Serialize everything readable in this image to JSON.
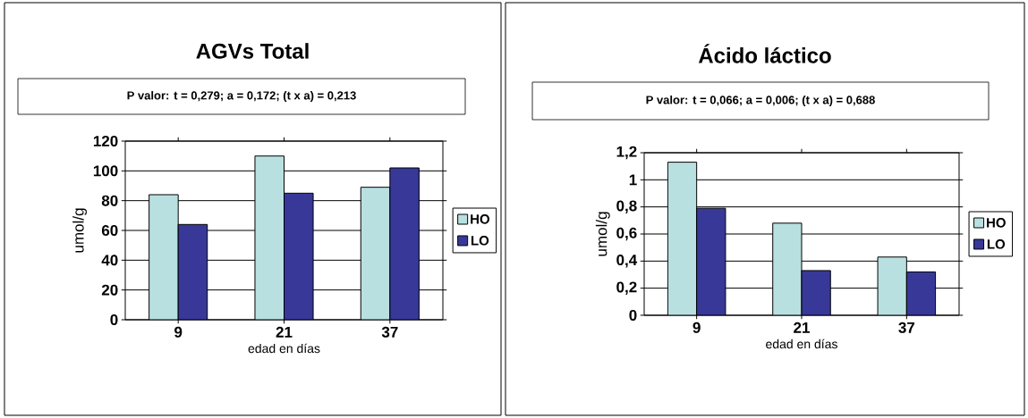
{
  "chart_data": [
    {
      "type": "bar",
      "title": "AGVs Total",
      "subtitle": "P valor: t = 0,279; a = 0,172; (t x a) = 0,213",
      "xlabel": "edad en días",
      "ylabel": "umol/g",
      "categories": [
        "9",
        "21",
        "37"
      ],
      "series": [
        {
          "name": "HO",
          "color": "#b9e0e0",
          "values": [
            84,
            110,
            89
          ]
        },
        {
          "name": "LO",
          "color": "#383899",
          "values": [
            64,
            85,
            102
          ]
        }
      ],
      "ylim": [
        0,
        120
      ],
      "yticks": [
        0,
        20,
        40,
        60,
        80,
        100,
        120
      ],
      "grid": "y",
      "legend": "right"
    },
    {
      "type": "bar",
      "title": "Ácido láctico",
      "subtitle": "P valor: t = 0,066; a = 0,006; (t x a) = 0,688",
      "xlabel": "edad en días",
      "ylabel": "umol/g",
      "categories": [
        "9",
        "21",
        "37"
      ],
      "series": [
        {
          "name": "HO",
          "color": "#b9e0e0",
          "values": [
            1.13,
            0.68,
            0.43
          ]
        },
        {
          "name": "LO",
          "color": "#383899",
          "values": [
            0.79,
            0.33,
            0.32
          ]
        }
      ],
      "ylim": [
        0,
        1.2
      ],
      "yticks": [
        0,
        {
          "value": 0.2,
          "label": "0,2"
        },
        {
          "value": 0.4,
          "label": "0,4"
        },
        {
          "value": 0.6,
          "label": "0,6"
        },
        {
          "value": 0.8,
          "label": "0,8"
        },
        1,
        {
          "value": 1.2,
          "label": "1,2"
        }
      ],
      "grid": "y",
      "legend": "right"
    }
  ]
}
